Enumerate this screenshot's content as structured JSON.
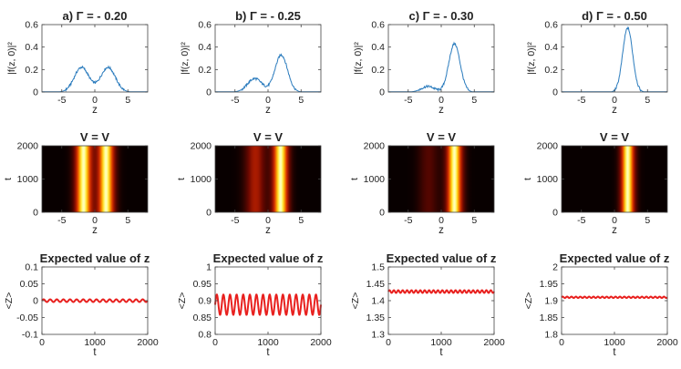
{
  "chart_data": [
    {
      "id": "a-top",
      "type": "line",
      "title": "a) Γ = - 0.20",
      "xlabel": "z",
      "ylabel": "|f(z, 0)|²",
      "xlim": [
        -8,
        8
      ],
      "ylim": [
        0,
        0.6
      ],
      "xticks": [
        -5,
        0,
        5
      ],
      "yticks": [
        0,
        0.2,
        0.4,
        0.6
      ],
      "peaks": [
        {
          "center": -2.0,
          "height": 0.22,
          "width": 1.1
        },
        {
          "center": 2.0,
          "height": 0.22,
          "width": 1.1
        }
      ],
      "series": [
        {
          "name": "|f(z,0)|^2",
          "color": "#2a7bbd"
        }
      ]
    },
    {
      "id": "b-top",
      "type": "line",
      "title": "b) Γ = - 0.25",
      "xlabel": "z",
      "ylabel": "|f(z, 0)|²",
      "xlim": [
        -8,
        8
      ],
      "ylim": [
        0,
        0.6
      ],
      "xticks": [
        -5,
        0,
        5
      ],
      "yticks": [
        0,
        0.2,
        0.4,
        0.6
      ],
      "peaks": [
        {
          "center": -2.0,
          "height": 0.12,
          "width": 1.1
        },
        {
          "center": 2.0,
          "height": 0.33,
          "width": 0.95
        }
      ],
      "series": [
        {
          "name": "|f(z,0)|^2",
          "color": "#2a7bbd"
        }
      ]
    },
    {
      "id": "c-top",
      "type": "line",
      "title": "c) Γ = - 0.30",
      "xlabel": "z",
      "ylabel": "|f(z, 0)|²",
      "xlim": [
        -8,
        8
      ],
      "ylim": [
        0,
        0.6
      ],
      "xticks": [
        -5,
        0,
        5
      ],
      "yticks": [
        0,
        0.2,
        0.4,
        0.6
      ],
      "peaks": [
        {
          "center": -2.0,
          "height": 0.05,
          "width": 1.0
        },
        {
          "center": 2.0,
          "height": 0.43,
          "width": 0.85
        }
      ],
      "series": [
        {
          "name": "|f(z,0)|^2",
          "color": "#2a7bbd"
        }
      ]
    },
    {
      "id": "d-top",
      "type": "line",
      "title": "d) Γ = - 0.50",
      "xlabel": "z",
      "ylabel": "|f(z, 0)|²",
      "xlim": [
        -8,
        8
      ],
      "ylim": [
        0,
        0.6
      ],
      "xticks": [
        -5,
        0,
        5
      ],
      "yticks": [
        0,
        0.2,
        0.4,
        0.6
      ],
      "peaks": [
        {
          "center": 2.0,
          "height": 0.57,
          "width": 0.75
        }
      ],
      "series": [
        {
          "name": "|f(z,0)|^2",
          "color": "#2a7bbd"
        }
      ]
    },
    {
      "id": "a-mid",
      "type": "heatmap",
      "title": "V = V",
      "xlabel": "z",
      "ylabel": "t",
      "xlim": [
        -8,
        8
      ],
      "ylim": [
        0,
        2000
      ],
      "xticks": [
        -5,
        0,
        5
      ],
      "yticks": [
        0,
        1000,
        2000
      ],
      "bands": [
        {
          "center": -1.7,
          "intensity": 1.0,
          "width": 0.9
        },
        {
          "center": 1.7,
          "intensity": 1.0,
          "width": 0.9
        }
      ]
    },
    {
      "id": "b-mid",
      "type": "heatmap",
      "title": "V = V",
      "xlabel": "z",
      "ylabel": "t",
      "xlim": [
        -8,
        8
      ],
      "ylim": [
        0,
        2000
      ],
      "xticks": [
        -5,
        0,
        5
      ],
      "yticks": [
        0,
        1000,
        2000
      ],
      "bands": [
        {
          "center": -1.9,
          "intensity": 0.45,
          "width": 1.1
        },
        {
          "center": 1.9,
          "intensity": 1.0,
          "width": 0.85
        }
      ]
    },
    {
      "id": "c-mid",
      "type": "heatmap",
      "title": "V = V",
      "xlabel": "z",
      "ylabel": "t",
      "xlim": [
        -8,
        8
      ],
      "ylim": [
        0,
        2000
      ],
      "xticks": [
        -5,
        0,
        5
      ],
      "yticks": [
        0,
        1000,
        2000
      ],
      "bands": [
        {
          "center": -1.9,
          "intensity": 0.22,
          "width": 1.1
        },
        {
          "center": 2.0,
          "intensity": 1.0,
          "width": 0.85
        }
      ]
    },
    {
      "id": "d-mid",
      "type": "heatmap",
      "title": "V = V",
      "xlabel": "z",
      "ylabel": "t",
      "xlim": [
        -8,
        8
      ],
      "ylim": [
        0,
        2000
      ],
      "xticks": [
        -5,
        0,
        5
      ],
      "yticks": [
        0,
        1000,
        2000
      ],
      "bands": [
        {
          "center": 2.0,
          "intensity": 1.0,
          "width": 0.75
        }
      ]
    },
    {
      "id": "a-bot",
      "type": "line",
      "title": "Expected value of z",
      "xlabel": "t",
      "ylabel": "<Z>",
      "xlim": [
        0,
        2000
      ],
      "ylim": [
        -0.1,
        0.1
      ],
      "xticks": [
        0,
        1000,
        2000
      ],
      "yticks": [
        -0.1,
        -0.05,
        0,
        0.05,
        0.1
      ],
      "oscillation": {
        "mean": 0.0,
        "amplitude": 0.004,
        "periods": 16
      },
      "series": [
        {
          "name": "<Z>",
          "color": "#e8201e"
        }
      ]
    },
    {
      "id": "b-bot",
      "type": "line",
      "title": "Expected value of z",
      "xlabel": "t",
      "ylabel": "<Z>",
      "xlim": [
        0,
        2000
      ],
      "ylim": [
        0.8,
        1.0
      ],
      "xticks": [
        0,
        1000,
        2000
      ],
      "yticks": [
        0.8,
        0.85,
        0.9,
        0.95,
        1.0
      ],
      "oscillation": {
        "mean": 0.888,
        "amplitude": 0.03,
        "periods": 16
      },
      "series": [
        {
          "name": "<Z>",
          "color": "#e8201e"
        }
      ]
    },
    {
      "id": "c-bot",
      "type": "line",
      "title": "Expected value of z",
      "xlabel": "t",
      "ylabel": "<Z>",
      "xlim": [
        0,
        2000
      ],
      "ylim": [
        1.3,
        1.5
      ],
      "xticks": [
        0,
        1000,
        2000
      ],
      "yticks": [
        1.3,
        1.35,
        1.4,
        1.45,
        1.5
      ],
      "oscillation": {
        "mean": 1.427,
        "amplitude": 0.004,
        "periods": 24
      },
      "series": [
        {
          "name": "<Z>",
          "color": "#e8201e"
        }
      ]
    },
    {
      "id": "d-bot",
      "type": "line",
      "title": "Expected value of z",
      "xlabel": "t",
      "ylabel": "<Z>",
      "xlim": [
        0,
        2000
      ],
      "ylim": [
        1.8,
        2.0
      ],
      "xticks": [
        0,
        1000,
        2000
      ],
      "yticks": [
        1.8,
        1.85,
        1.9,
        1.95,
        2.0
      ],
      "oscillation": {
        "mean": 1.91,
        "amplitude": 0.002,
        "periods": 24
      },
      "series": [
        {
          "name": "<Z>",
          "color": "#e8201e"
        }
      ]
    }
  ]
}
